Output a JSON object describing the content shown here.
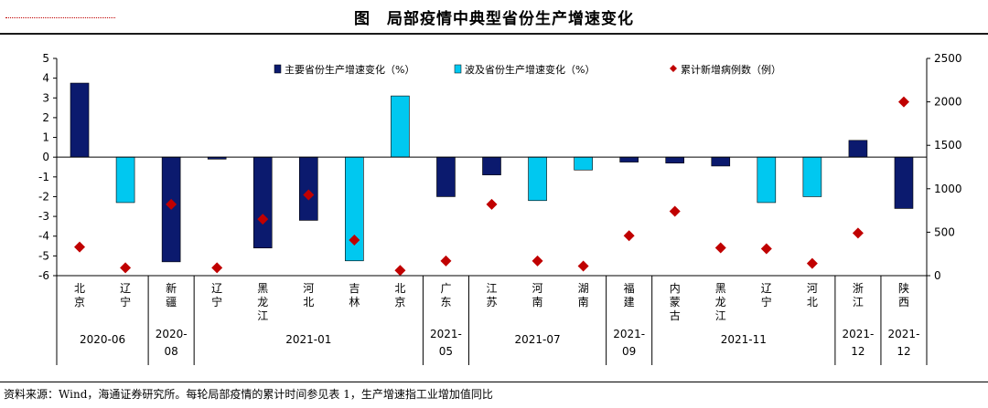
{
  "header": {
    "title": "图　局部疫情中典型省份生产增速变化"
  },
  "footer": {
    "source": "资料来源：Wind，海通证券研究所。每轮局部疫情的累计时间参见表 1，生产增速指工业增加值同比"
  },
  "chart_data": {
    "type": "bar",
    "title": "局部疫情中典型省份生产增速变化",
    "categories": [
      "北京",
      "辽宁",
      "新疆",
      "辽宁",
      "黑龙江",
      "河北",
      "吉林",
      "北京",
      "广东",
      "江苏",
      "河南",
      "湖南",
      "福建",
      "内蒙古",
      "黑龙江",
      "辽宁",
      "河北",
      "浙江",
      "陕西"
    ],
    "category_labels": [
      "北\n京",
      "辽\n宁",
      "新\n疆",
      "辽\n宁",
      "黑\n龙\n江",
      "河\n北",
      "吉\n林",
      "北\n京",
      "广\n东",
      "江\n苏",
      "河\n南",
      "湖\n南",
      "福\n建",
      "内\n蒙\n古",
      "黑\n龙\n江",
      "辽\n宁",
      "河\n北",
      "浙\n江",
      "陕\n西"
    ],
    "groups": [
      {
        "label": "2020-06",
        "start": 0,
        "end": 1
      },
      {
        "label": "2020-08",
        "start": 2,
        "end": 2
      },
      {
        "label": "2021-01",
        "start": 3,
        "end": 7
      },
      {
        "label": "2021-05",
        "start": 8,
        "end": 8
      },
      {
        "label": "2021-07",
        "start": 9,
        "end": 11
      },
      {
        "label": "2021-09",
        "start": 12,
        "end": 12
      },
      {
        "label": "2021-11",
        "start": 13,
        "end": 16
      },
      {
        "label": "2021-12",
        "start": 17,
        "end": 17
      },
      {
        "label": "2021-12",
        "start": 18,
        "end": 18
      }
    ],
    "series": [
      {
        "name": "主要省份生产增速变化（%）",
        "kind": "bar",
        "color": "#0b1a6e",
        "axis": "left",
        "values": [
          3.75,
          null,
          -5.3,
          -0.1,
          -4.6,
          -3.2,
          null,
          null,
          -2.0,
          -0.9,
          null,
          null,
          -0.25,
          -0.3,
          -0.45,
          null,
          null,
          0.85,
          -2.6
        ]
      },
      {
        "name": "波及省份生产增速变化（%）",
        "kind": "bar",
        "color": "#00c8f0",
        "axis": "left",
        "values": [
          null,
          -2.3,
          null,
          null,
          null,
          null,
          -5.25,
          3.1,
          null,
          null,
          -2.2,
          -0.65,
          null,
          null,
          null,
          -2.3,
          -2.0,
          null,
          null
        ]
      },
      {
        "name": "累计新增病例数（例）",
        "kind": "scatter",
        "color": "#c00000",
        "axis": "right",
        "values": [
          330,
          90,
          820,
          90,
          650,
          930,
          410,
          60,
          170,
          820,
          170,
          110,
          460,
          740,
          320,
          310,
          140,
          490,
          2000
        ]
      }
    ],
    "y_left": {
      "min": -6,
      "max": 5,
      "ticks": [
        -6,
        -5,
        -4,
        -3,
        -2,
        -1,
        0,
        1,
        2,
        3,
        4,
        5
      ],
      "tick_labels": [
        "-6",
        "-5",
        "-4",
        "-3",
        "-2",
        "-1",
        "0",
        "1",
        "2",
        "3",
        "4",
        "5"
      ]
    },
    "y_right": {
      "min": 0,
      "max": 2500,
      "ticks": [
        0,
        500,
        1000,
        1500,
        2000,
        2500
      ],
      "tick_labels": [
        "0",
        "500",
        "1000",
        "1500",
        "2000",
        "2500"
      ]
    },
    "legend_position": "top"
  }
}
